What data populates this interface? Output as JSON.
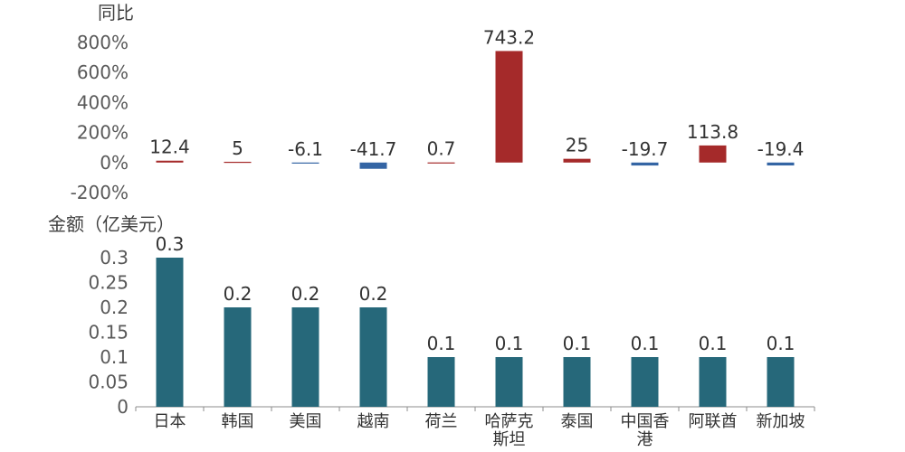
{
  "chart_data": [
    {
      "type": "bar",
      "ylabel": "同比",
      "categories": [
        "日本",
        "韩国",
        "美国",
        "越南",
        "荷兰",
        "哈萨克斯坦",
        "泰国",
        "中国香港",
        "阿联酋",
        "新加坡"
      ],
      "values": [
        12.4,
        5,
        -6.1,
        -41.7,
        0.7,
        743.2,
        25,
        -19.7,
        113.8,
        -19.4
      ],
      "data_labels": [
        "12.4",
        "5",
        "-6.1",
        "-41.7",
        "0.7",
        "743.2",
        "25",
        "-19.7",
        "113.8",
        "-19.4"
      ],
      "y_ticks": [
        "800%",
        "600%",
        "400%",
        "200%",
        "0%",
        "-200%"
      ],
      "ylim": [
        -200,
        800
      ],
      "colors": {
        "positive": "#a52a2a",
        "negative": "#3465a4"
      },
      "grid": false
    },
    {
      "type": "bar",
      "ylabel": "金额（亿美元）",
      "categories": [
        "日本",
        "韩国",
        "美国",
        "越南",
        "荷兰",
        "哈萨克斯坦",
        "泰国",
        "中国香港",
        "阿联酋",
        "新加坡"
      ],
      "category_lines": [
        [
          "日本"
        ],
        [
          "韩国"
        ],
        [
          "美国"
        ],
        [
          "越南"
        ],
        [
          "荷兰"
        ],
        [
          "哈萨克",
          "斯坦"
        ],
        [
          "泰国"
        ],
        [
          "中国香",
          "港"
        ],
        [
          "阿联酋"
        ],
        [
          "新加坡"
        ]
      ],
      "values": [
        0.3,
        0.2,
        0.2,
        0.2,
        0.1,
        0.1,
        0.1,
        0.1,
        0.1,
        0.1
      ],
      "data_labels": [
        "0.3",
        "0.2",
        "0.2",
        "0.2",
        "0.1",
        "0.1",
        "0.1",
        "0.1",
        "0.1",
        "0.1"
      ],
      "y_ticks": [
        "0.3",
        "0.25",
        "0.2",
        "0.15",
        "0.1",
        "0.05",
        "0"
      ],
      "ylim": [
        0,
        0.3
      ],
      "colors": {
        "bar": "#26687a"
      },
      "grid": false
    }
  ]
}
